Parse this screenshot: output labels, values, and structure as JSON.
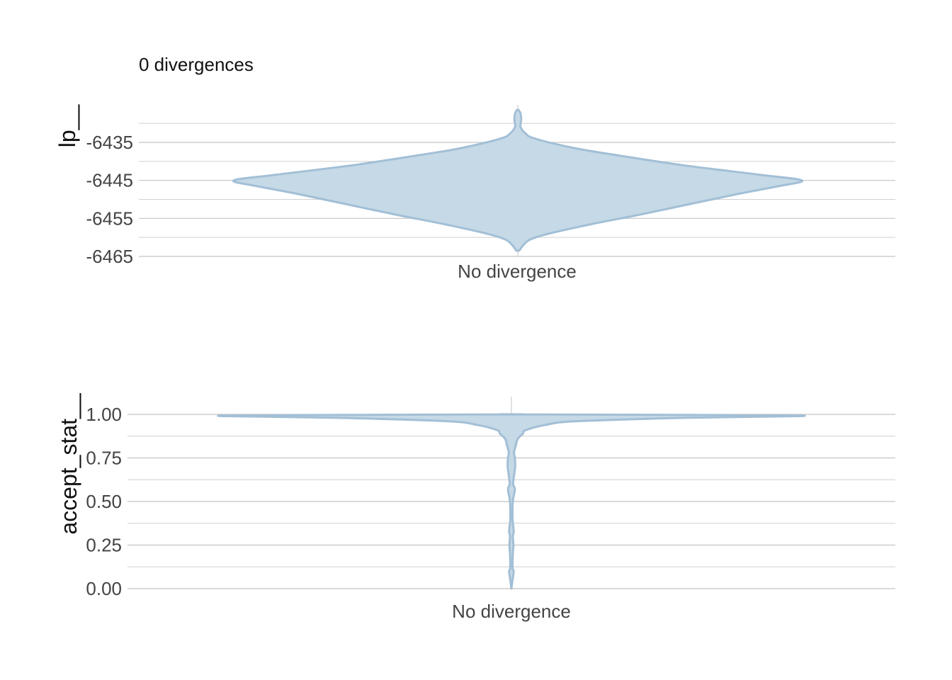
{
  "subtitle": "0 divergences",
  "colors": {
    "fill": "#c5d9e6",
    "stroke": "#a2bfd6",
    "grid": "#d0d0d0",
    "tick_text": "#444444",
    "label_text": "#111111"
  },
  "chart_data": [
    {
      "type": "violin",
      "ylabel": "lp__",
      "categories": [
        "No divergence"
      ],
      "ylim": [
        -6465,
        -6425
      ],
      "yticks": [
        -6435,
        -6445,
        -6455,
        -6465
      ],
      "ytick_labels": [
        "-6435",
        "-6445",
        -6455,
        "-6465"
      ],
      "minor_grid": [
        -6430,
        -6440,
        -6450,
        -6460
      ],
      "grid": true,
      "range": [
        -6463.5,
        -6426.5
      ],
      "density_profile": [
        [
          -6463.5,
          0.005
        ],
        [
          -6462.0,
          0.02
        ],
        [
          -6460.5,
          0.045
        ],
        [
          -6459.0,
          0.11
        ],
        [
          -6456.5,
          0.26
        ],
        [
          -6454.0,
          0.43
        ],
        [
          -6451.0,
          0.62
        ],
        [
          -6448.5,
          0.78
        ],
        [
          -6446.5,
          0.92
        ],
        [
          -6445.0,
          1.0
        ],
        [
          -6443.5,
          0.85
        ],
        [
          -6441.0,
          0.58
        ],
        [
          -6438.5,
          0.36
        ],
        [
          -6436.5,
          0.2
        ],
        [
          -6434.0,
          0.06
        ],
        [
          -6432.5,
          0.025
        ],
        [
          -6431.0,
          0.01
        ],
        [
          -6430.0,
          0.01
        ],
        [
          -6429.0,
          0.012
        ],
        [
          -6427.5,
          0.01
        ],
        [
          -6426.5,
          0.003
        ]
      ]
    },
    {
      "type": "violin",
      "ylabel": "accept_stat__",
      "categories": [
        "No divergence"
      ],
      "ylim": [
        0,
        1.1
      ],
      "yticks": [
        1.0,
        0.75,
        0.5,
        0.25,
        0.0
      ],
      "ytick_labels": [
        "1.00",
        "0.75",
        "0.50",
        "0.25",
        "0.00"
      ],
      "minor_grid": [
        0.875,
        0.625,
        0.375,
        0.125
      ],
      "grid": true,
      "range": [
        0.0,
        1.0
      ],
      "density_profile": [
        [
          0.0,
          0.0
        ],
        [
          0.05,
          0.004
        ],
        [
          0.1,
          0.008
        ],
        [
          0.12,
          0.004
        ],
        [
          0.2,
          0.005
        ],
        [
          0.25,
          0.007
        ],
        [
          0.3,
          0.005
        ],
        [
          0.33,
          0.008
        ],
        [
          0.4,
          0.004
        ],
        [
          0.5,
          0.005
        ],
        [
          0.57,
          0.012
        ],
        [
          0.6,
          0.006
        ],
        [
          0.66,
          0.01
        ],
        [
          0.7,
          0.013
        ],
        [
          0.75,
          0.012
        ],
        [
          0.78,
          0.009
        ],
        [
          0.82,
          0.015
        ],
        [
          0.86,
          0.022
        ],
        [
          0.89,
          0.04
        ],
        [
          0.91,
          0.05
        ],
        [
          0.94,
          0.12
        ],
        [
          0.96,
          0.22
        ],
        [
          0.98,
          0.6
        ],
        [
          0.99,
          1.0
        ],
        [
          0.995,
          0.85
        ],
        [
          1.0,
          0.0
        ]
      ]
    }
  ]
}
